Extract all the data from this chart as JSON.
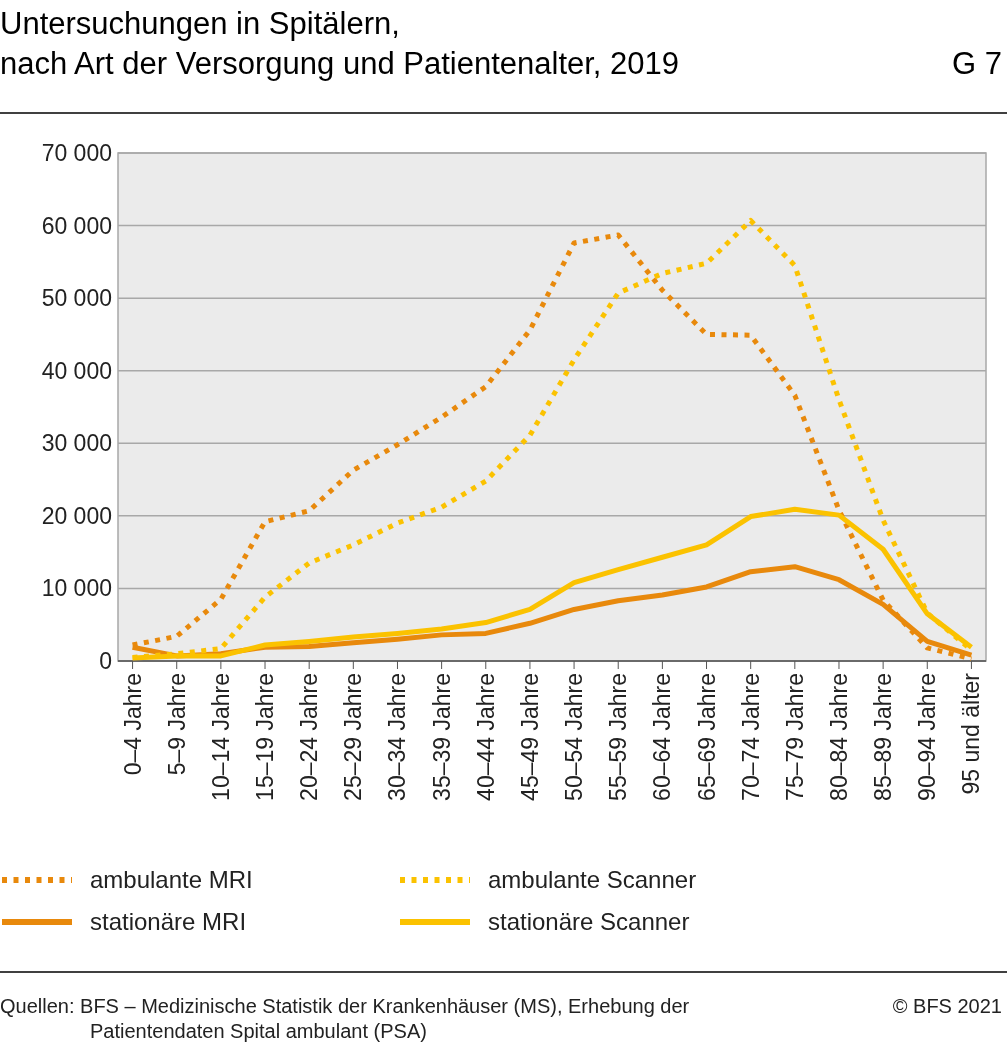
{
  "chart_data": {
    "type": "line",
    "title": "Untersuchungen in Spitälern,\nnach Art der Versorgung und Patientenalter, 2019",
    "categories": [
      "0–4 Jahre",
      "5–9 Jahre",
      "10–14 Jahre",
      "15–19 Jahre",
      "20–24 Jahre",
      "25–29 Jahre",
      "30–34 Jahre",
      "35–39 Jahre",
      "40–44 Jahre",
      "45–49 Jahre",
      "50–54 Jahre",
      "55–59 Jahre",
      "60–64 Jahre",
      "65–69 Jahre",
      "70–74 Jahre",
      "75–79 Jahre",
      "80–84 Jahre",
      "85–89 Jahre",
      "90–94 Jahre",
      "95 und älter"
    ],
    "series": [
      {
        "name": "ambulante MRI",
        "color": "#e8890c",
        "line_style": "dotted",
        "values": [
          2200,
          3400,
          8500,
          19200,
          20700,
          26300,
          29800,
          33600,
          37800,
          45600,
          57600,
          58700,
          51100,
          45000,
          44900,
          36600,
          20800,
          8400,
          1800,
          300
        ]
      },
      {
        "name": "stationäre MRI",
        "color": "#e8890c",
        "line_style": "solid",
        "values": [
          1900,
          700,
          1000,
          1900,
          2000,
          2500,
          3000,
          3600,
          3800,
          5200,
          7100,
          8300,
          9100,
          10200,
          12300,
          13000,
          11200,
          7800,
          2700,
          800
        ]
      },
      {
        "name": "ambulante Scanner",
        "color": "#fbc200",
        "line_style": "dotted",
        "values": [
          500,
          1000,
          1700,
          8800,
          13500,
          16000,
          19000,
          21200,
          24800,
          31100,
          41500,
          50700,
          53400,
          54800,
          60700,
          54500,
          36000,
          19400,
          6600,
          1500
        ]
      },
      {
        "name": "stationäre Scanner",
        "color": "#fbc200",
        "line_style": "solid",
        "values": [
          400,
          700,
          700,
          2200,
          2700,
          3300,
          3800,
          4400,
          5300,
          7100,
          10800,
          12600,
          14300,
          16000,
          19900,
          20900,
          20100,
          15400,
          6500,
          1900
        ]
      }
    ],
    "ylim": [
      0,
      70000
    ],
    "yticks": [
      {
        "value": 0,
        "label": "0"
      },
      {
        "value": 10000,
        "label": "10 000"
      },
      {
        "value": 20000,
        "label": "20 000"
      },
      {
        "value": 30000,
        "label": "30 000"
      },
      {
        "value": 40000,
        "label": "40 000"
      },
      {
        "value": 50000,
        "label": "50 000"
      },
      {
        "value": 60000,
        "label": "60 000"
      },
      {
        "value": 70000,
        "label": "70 000"
      }
    ],
    "grid": "y",
    "legend": "bottom",
    "marker": "none",
    "annotations": [
      "G 7",
      "Quellen: BFS – Medizinische Statistik der Krankenhäuser (MS), Erhebung der Patientendaten Spital ambulant (PSA)",
      "© BFS 2021"
    ]
  }
}
